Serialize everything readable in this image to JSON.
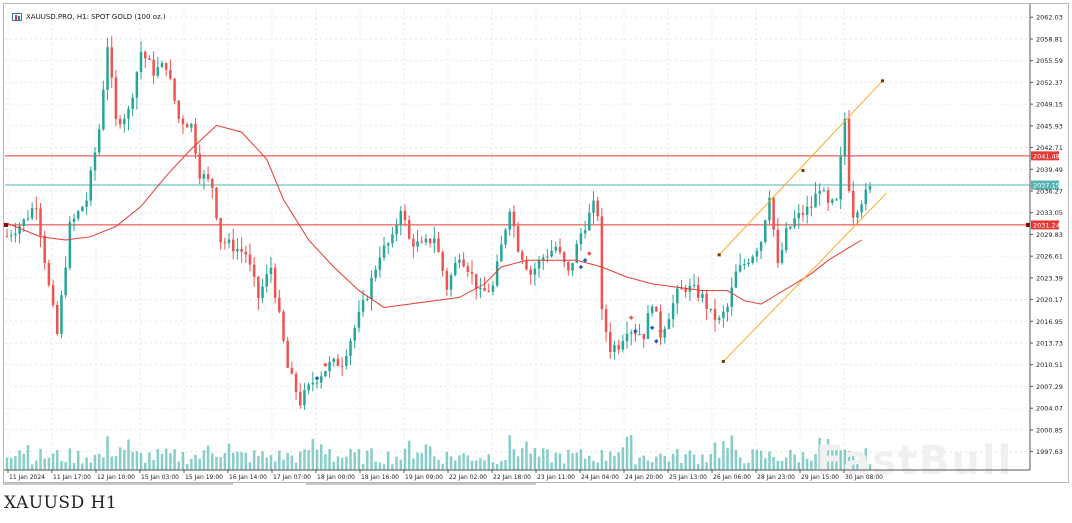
{
  "header": {
    "title": "XAUUSD.PRO, H1:  SPOT GOLD (100 oz.)",
    "icon": "chart-window-icon"
  },
  "caption": "XAUUSD  H1",
  "watermark": "FastBull",
  "colors": {
    "bull": "#26a69a",
    "bear": "#ef5350",
    "ma": "#e53935",
    "channel": "#ffa726",
    "hline_red": "#e53935",
    "hline_teal": "#4fb3b3",
    "volume": "#26a69a",
    "grid": "#e6e6e6"
  },
  "chart_data": {
    "type": "candlestick",
    "y_ticks": [
      "2062.03",
      "2058.81",
      "2055.59",
      "2052.37",
      "2049.15",
      "2045.93",
      "2042.71",
      "2039.49",
      "2036.27",
      "2033.05",
      "2029.83",
      "2026.61",
      "2023.39",
      "2020.17",
      "2016.95",
      "2013.73",
      "2010.51",
      "2007.29",
      "2004.07",
      "2000.85",
      "1997.63"
    ],
    "ylim": [
      1995.2,
      2063.4
    ],
    "x_labels": [
      "11 Jan 2024",
      "11 Jan 17:00",
      "12 Jan 10:00",
      "15 Jan 03:00",
      "15 Jan 19:00",
      "16 Jan 14:00",
      "17 Jan 07:00",
      "18 Jan 00:00",
      "18 Jan 16:00",
      "19 Jan 09:00",
      "22 Jan 02:00",
      "22 Jan 18:00",
      "23 Jan 11:00",
      "24 Jan 04:00",
      "24 Jan 20:00",
      "25 Jan 13:00",
      "26 Jan 06:00",
      "28 Jan 23:00",
      "29 Jan 15:00",
      "30 Jan 08:00"
    ],
    "price_tags": [
      {
        "label": "2041.48",
        "value": 2041.48,
        "color": "#e53935"
      },
      {
        "label": "2037.15",
        "value": 2037.15,
        "color": "#4fb3b3"
      },
      {
        "label": "2031.24",
        "value": 2031.24,
        "color": "#e53935"
      }
    ],
    "close_path": [
      [
        0,
        2029.6
      ],
      [
        4,
        2031.8
      ],
      [
        7,
        2034.5
      ],
      [
        10,
        2022.0
      ],
      [
        12,
        2015.0
      ],
      [
        15,
        2031.0
      ],
      [
        19,
        2035.0
      ],
      [
        22,
        2045.5
      ],
      [
        24,
        2058.0
      ],
      [
        26,
        2046.5
      ],
      [
        29,
        2048.0
      ],
      [
        32,
        2057.0
      ],
      [
        35,
        2054.0
      ],
      [
        38,
        2055.0
      ],
      [
        41,
        2047.0
      ],
      [
        44,
        2046.0
      ],
      [
        46,
        2039.0
      ],
      [
        49,
        2037.0
      ],
      [
        51,
        2029.0
      ],
      [
        54,
        2028.0
      ],
      [
        57,
        2027.0
      ],
      [
        60,
        2020.5
      ],
      [
        63,
        2025.0
      ],
      [
        67,
        2010.0
      ],
      [
        70,
        2005.0
      ],
      [
        73,
        2008.0
      ],
      [
        77,
        2010.5
      ],
      [
        80,
        2011.0
      ],
      [
        83,
        2016.0
      ],
      [
        86,
        2021.0
      ],
      [
        89,
        2027.0
      ],
      [
        92,
        2029.0
      ],
      [
        94,
        2034.0
      ],
      [
        96,
        2029.0
      ],
      [
        99,
        2028.0
      ],
      [
        102,
        2029.5
      ],
      [
        105,
        2022.0
      ],
      [
        108,
        2027.0
      ],
      [
        110,
        2025.0
      ],
      [
        113,
        2021.0
      ],
      [
        116,
        2022.0
      ],
      [
        118,
        2028.0
      ],
      [
        120,
        2034.0
      ],
      [
        122,
        2028.0
      ],
      [
        125,
        2024.0
      ],
      [
        128,
        2026.5
      ],
      [
        131,
        2028.0
      ],
      [
        134,
        2024.0
      ],
      [
        137,
        2030.0
      ],
      [
        140,
        2034.0
      ],
      [
        141,
        2033.0
      ],
      [
        142,
        2018.0
      ],
      [
        144,
        2013.0
      ],
      [
        146,
        2013.5
      ],
      [
        148,
        2016.0
      ],
      [
        150,
        2015.5
      ],
      [
        152,
        2015.0
      ],
      [
        154,
        2020.0
      ],
      [
        156,
        2015.0
      ],
      [
        158,
        2018.0
      ],
      [
        160,
        2021.0
      ],
      [
        162,
        2022.0
      ],
      [
        164,
        2021.5
      ],
      [
        166,
        2020.5
      ],
      [
        168,
        2018.0
      ],
      [
        170,
        2017.0
      ],
      [
        172,
        2019.0
      ],
      [
        174,
        2024.0
      ],
      [
        176,
        2025.5
      ],
      [
        178,
        2027.0
      ],
      [
        180,
        2029.0
      ],
      [
        182,
        2036.0
      ],
      [
        184,
        2025.0
      ],
      [
        186,
        2030.0
      ],
      [
        188,
        2032.0
      ],
      [
        190,
        2033.0
      ],
      [
        192,
        2034.0
      ],
      [
        194,
        2037.0
      ],
      [
        196,
        2034.0
      ],
      [
        198,
        2034.5
      ],
      [
        200,
        2047.0
      ],
      [
        201,
        2037.0
      ],
      [
        202,
        2033.0
      ],
      [
        204,
        2035.0
      ],
      [
        206,
        2036.5
      ]
    ],
    "ma_path": [
      [
        0,
        2031.5
      ],
      [
        8,
        2029.5
      ],
      [
        14,
        2029.0
      ],
      [
        20,
        2029.5
      ],
      [
        26,
        2031.0
      ],
      [
        32,
        2034.0
      ],
      [
        38,
        2038.5
      ],
      [
        44,
        2042.5
      ],
      [
        50,
        2046.0
      ],
      [
        56,
        2045.0
      ],
      [
        62,
        2041.0
      ],
      [
        66,
        2035.0
      ],
      [
        72,
        2029.0
      ],
      [
        78,
        2025.0
      ],
      [
        84,
        2021.5
      ],
      [
        90,
        2019.0
      ],
      [
        96,
        2019.5
      ],
      [
        102,
        2020.0
      ],
      [
        108,
        2020.5
      ],
      [
        114,
        2022.5
      ],
      [
        118,
        2025.0
      ],
      [
        124,
        2026.0
      ],
      [
        130,
        2026.0
      ],
      [
        136,
        2026.0
      ],
      [
        142,
        2025.0
      ],
      [
        148,
        2023.5
      ],
      [
        154,
        2022.5
      ],
      [
        160,
        2022.0
      ],
      [
        166,
        2021.5
      ],
      [
        172,
        2021.5
      ],
      [
        176,
        2020.0
      ],
      [
        180,
        2019.5
      ],
      [
        184,
        2021.0
      ],
      [
        188,
        2022.5
      ],
      [
        192,
        2024.0
      ],
      [
        196,
        2026.0
      ],
      [
        200,
        2027.5
      ],
      [
        204,
        2029.0
      ]
    ],
    "channel": {
      "upper": [
        [
          170,
          2026.8
        ],
        [
          209,
          2052.6
        ]
      ],
      "lower": [
        [
          171,
          2011.0
        ],
        [
          210,
          2036.0
        ]
      ],
      "dots": [
        [
          170,
          2026.8
        ],
        [
          190,
          2039.3
        ],
        [
          209,
          2052.6
        ],
        [
          171,
          2011.0
        ]
      ]
    },
    "bar_count": 207,
    "volume_ylim": [
      0,
      100
    ]
  }
}
